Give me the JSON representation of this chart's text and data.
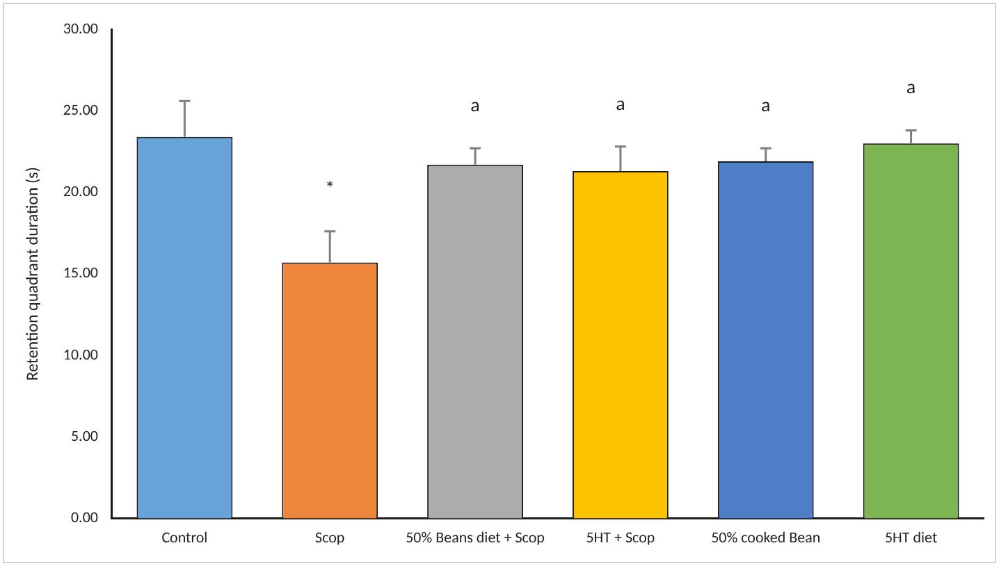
{
  "chart_data": {
    "type": "bar",
    "ylabel": "Retention quadrant duration (s)",
    "categories": [
      "Control",
      "Scop",
      "50% Beans diet + Scop",
      "5HT + Scop",
      "50% cooked Bean",
      "5HT diet"
    ],
    "values": [
      23.4,
      15.7,
      21.7,
      21.3,
      21.9,
      23.0
    ],
    "colors": [
      "#67a3d9",
      "#ee873b",
      "#acacac",
      "#fec300",
      "#4e7ec8",
      "#7db553"
    ],
    "errors": [
      [
        23.4,
        25.6
      ],
      [
        15.7,
        17.6
      ],
      [
        21.7,
        22.7
      ],
      [
        21.3,
        22.8
      ],
      [
        21.9,
        22.7
      ],
      [
        23.0,
        23.8
      ]
    ],
    "ylim": [
      0,
      30
    ],
    "yticks": [
      {
        "value": 0,
        "label": "0.00"
      },
      {
        "value": 5,
        "label": "5.00"
      },
      {
        "value": 10,
        "label": "10.00"
      },
      {
        "value": 15,
        "label": "15.00"
      },
      {
        "value": 20,
        "label": "20.00"
      },
      {
        "value": 25,
        "label": "25.00"
      },
      {
        "value": 30,
        "label": "30.00"
      }
    ],
    "grid": false,
    "legend": false,
    "annotations": [
      {
        "text": "*",
        "x": "Scop",
        "y": 17.6
      },
      {
        "text": "a",
        "x": "50% Beans diet + Scop",
        "y": 22.7
      },
      {
        "text": "a",
        "x": "5HT + Scop",
        "y": 22.8
      },
      {
        "text": "a",
        "x": "50% cooked Bean",
        "y": 22.7
      },
      {
        "text": "a",
        "x": "5HT diet",
        "y": 23.8
      }
    ]
  }
}
